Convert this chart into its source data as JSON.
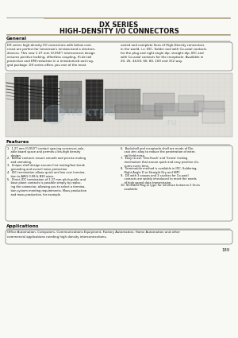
{
  "title_line1": "DX SERIES",
  "title_line2": "HIGH-DENSITY I/O CONNECTORS",
  "page_bg": "#f8f8f5",
  "section_general": "General",
  "general_text_left": "DX series high-density I/O connectors with below cost-\nresist are perfect for tomorrow's miniaturized a electron-\ndevices. This new 1.27 mm (0.050\") interconnect design\nensures positive locking, effortless coupling, Hi-de tail\nprotection and EMI reduction in a miniaturized and rug-\nged package. DX series offers you one of the most",
  "general_text_right": "varied and complete lines of High-Density connectors\nin the world, i.e. IDC, Solder and with Co-axial contacts\nfor the plug and right angle dip, straight dip, IDC and\nwith Co-axial contacts for the receptacle. Available in\n20, 26, 34,50, 60, 80, 100 and 152 way.",
  "section_features": "Features",
  "left_features": [
    "1.  1.27 mm (0.050\") contact spacing conserves valu-\n    able board space and permits ultra-high density\n    design.",
    "2.  Bellow contacts ensure smooth and precise mating\n    and unmating.",
    "3.  Unique shell design assures first mating/last break\n    grounding and overall noise protection.",
    "4.  IDC termination allows quick and low cost termina-\n    tion to AWG 0.08 & B30 wires.",
    "5.  Direct IDC termination of 1.27 mm pitch-public and\n    base plane contacts is possible simply by replac-\n    ing the connector, allowing you to select a termina-\n    tion system meeting requirements. Mass production\n    and mass production, for example."
  ],
  "right_features": [
    "6.  Backshell and receptacle shell are made of Die-\n    cast zinc alloy to reduce the penetration of exter-\n    nal field noise.",
    "7.  Easy to use 'One-Touch' and 'Screw' locking\n    mechanism that assure quick and easy positive clo-\n    sures every time.",
    "8.  Termination method is available in IDC, Soldering,\n    Right Angle D or Straight Dry and SMT.",
    "9.  DX with 3 coaxes and 3 cavities for Co-axial\n    contacts are widely introduced to meet the needs\n    of high speed data transmission.",
    "10. Shielded Plug-in type for interface between 2 Units\n    available."
  ],
  "section_applications": "Applications",
  "applications_text": "Office Automation, Computers, Communications Equipment, Factory Automation, Home Automation and other\ncommercial applications needing high density interconnections.",
  "page_number": "189",
  "title_color": "#111111",
  "line_color": "#555555",
  "gold_color": "#b8860b",
  "box_border_color": "#777777",
  "text_color": "#1a1a1a",
  "img_bg": "#e8e8e0",
  "img_grid": "#ccccbb"
}
